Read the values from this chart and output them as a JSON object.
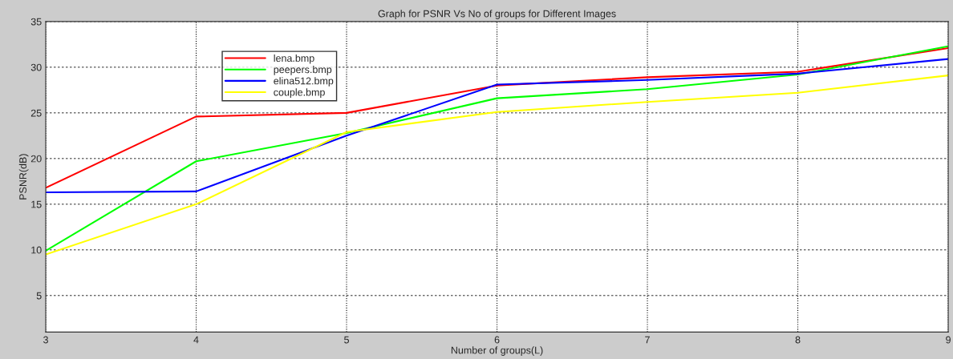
{
  "chart_data": {
    "type": "line",
    "title": "Graph for PSNR Vs No of groups for Different Images",
    "xlabel": "Number of groups(L)",
    "ylabel": "PSNR(dB)",
    "x": [
      3,
      4,
      5,
      6,
      7,
      8,
      9
    ],
    "series": [
      {
        "name": "lena.bmp",
        "color": "#ff0000",
        "values": [
          16.8,
          24.6,
          25.0,
          28.0,
          28.9,
          29.5,
          32.1
        ]
      },
      {
        "name": "peepers.bmp",
        "color": "#00ff00",
        "values": [
          9.9,
          19.7,
          22.8,
          26.6,
          27.6,
          29.2,
          32.3
        ]
      },
      {
        "name": "elina512.bmp",
        "color": "#0000ff",
        "values": [
          16.3,
          16.4,
          22.5,
          28.1,
          28.6,
          29.3,
          30.9
        ]
      },
      {
        "name": "couple.bmp",
        "color": "#ffff00",
        "values": [
          9.5,
          15.0,
          22.9,
          25.1,
          26.2,
          27.2,
          29.1
        ]
      }
    ],
    "xlim": [
      3,
      9
    ],
    "xticks": [
      3,
      4,
      5,
      6,
      7,
      8,
      9
    ],
    "ylim": [
      1,
      35
    ],
    "yticks": [
      5,
      10,
      15,
      20,
      25,
      30,
      35
    ],
    "grid": true,
    "legend": "top left",
    "marker": "none",
    "line_style": "solid"
  }
}
